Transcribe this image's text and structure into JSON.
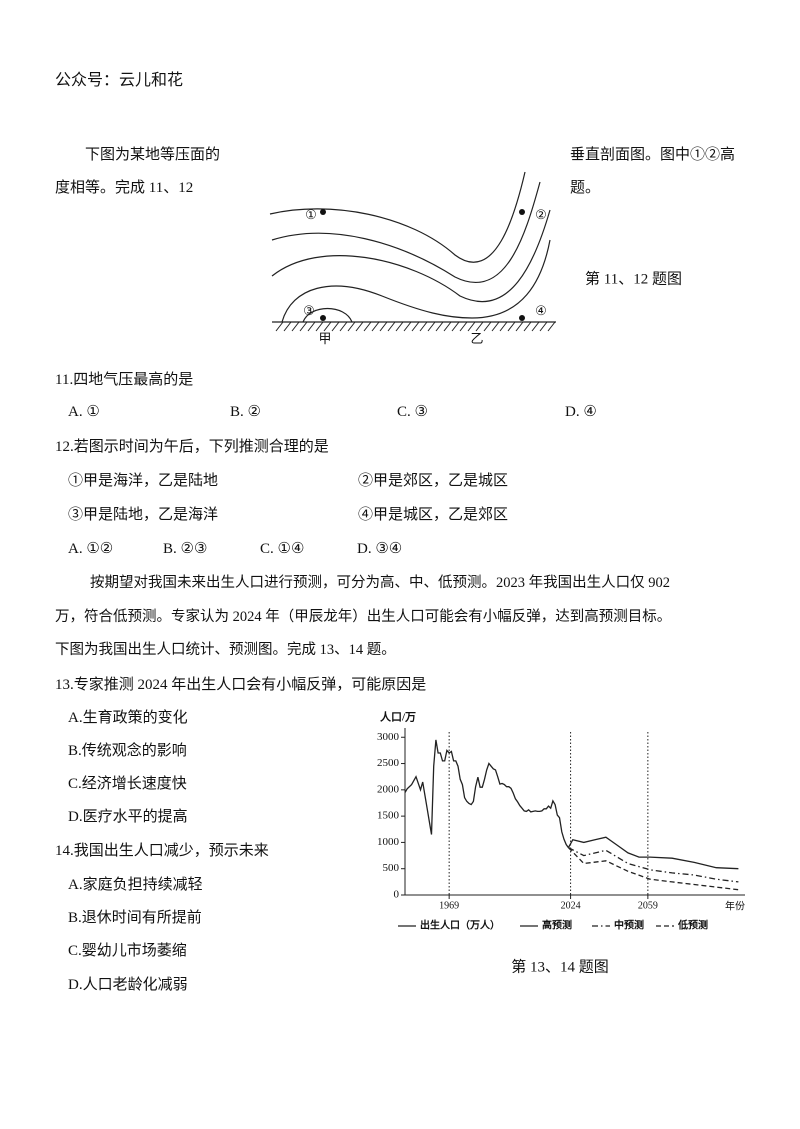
{
  "header": "公众号：云儿和花",
  "q11_12": {
    "intro": [
      "下图为某地等压面的",
      "垂直剖面图。图中①②高",
      "度相等。完成 11、12",
      "题。"
    ],
    "figure": {
      "points": [
        "①",
        "②",
        "③",
        "④"
      ],
      "places": [
        "甲",
        "乙"
      ],
      "caption": "第 11、12 题图"
    },
    "q11": {
      "stem": "11.四地气压最高的是",
      "options": [
        "A. ①",
        "B. ②",
        "C. ③",
        "D. ④"
      ]
    },
    "q12": {
      "stem": "12.若图示时间为午后，下列推测合理的是",
      "statements": [
        "①甲是海洋，乙是陆地",
        "②甲是郊区，乙是城区",
        "③甲是陆地，乙是海洋",
        "④甲是城区，乙是郊区"
      ],
      "options": [
        "A. ①②",
        "B. ②③",
        "C. ①④",
        "D. ③④"
      ]
    }
  },
  "q13_14": {
    "intro": [
      "按期望对我国未来出生人口进行预测，可分为高、中、低预测。2023 年我国出生人口仅 902",
      "万，符合低预测。专家认为 2024 年（甲辰龙年）出生人口可能会有小幅反弹，达到高预测目标。",
      "下图为我国出生人口统计、预测图。完成 13、14 题。"
    ],
    "q13": {
      "stem": "13.专家推测 2024 年出生人口会有小幅反弹，可能原因是",
      "options": [
        "A.生育政策的变化",
        "B.传统观念的影响",
        "C.经济增长速度快",
        "D.医疗水平的提高"
      ]
    },
    "q14": {
      "stem": "14.我国出生人口减少，预示未来",
      "options": [
        "A.家庭负担持续减轻",
        "B.退休时间有所提前",
        "C.婴幼儿市场萎缩",
        "D.人口老龄化减弱"
      ]
    },
    "caption": "第 13、14 题图"
  },
  "chart_data": {
    "type": "line",
    "ylabel": "人口/万",
    "xlabel": "年份",
    "xlim": [
      1949,
      2103
    ],
    "xticks": [
      1969,
      2024,
      2059
    ],
    "ylim": [
      0,
      3100
    ],
    "yticks": [
      0,
      500,
      1000,
      1500,
      2000,
      2500,
      3000
    ],
    "xgrid": "dotted",
    "series": [
      {
        "name": "出生人口（万人）",
        "color": "#222",
        "style": "solid",
        "x": [
          1949,
          1950,
          1952,
          1954,
          1956,
          1957,
          1958,
          1959,
          1960,
          1961,
          1962,
          1963,
          1964,
          1965,
          1966,
          1967,
          1968,
          1969,
          1970,
          1971,
          1972,
          1973,
          1974,
          1975,
          1976,
          1977,
          1978,
          1979,
          1980,
          1981,
          1982,
          1983,
          1984,
          1985,
          1986,
          1987,
          1988,
          1989,
          1990,
          1991,
          1992,
          1993,
          1994,
          1995,
          1996,
          1997,
          1998,
          1999,
          2000,
          2001,
          2002,
          2003,
          2004,
          2005,
          2006,
          2007,
          2008,
          2009,
          2010,
          2011,
          2012,
          2013,
          2014,
          2015,
          2016,
          2017,
          2018,
          2019,
          2020,
          2021,
          2022,
          2023
        ],
        "values": [
          1950,
          2020,
          2100,
          2250,
          2000,
          2150,
          1900,
          1650,
          1400,
          1150,
          2450,
          2950,
          2700,
          2700,
          2550,
          2550,
          2750,
          2700,
          2730,
          2550,
          2550,
          2450,
          2200,
          2100,
          1850,
          1780,
          1740,
          1720,
          1780,
          2060,
          2240,
          2050,
          2050,
          2200,
          2380,
          2500,
          2450,
          2400,
          2380,
          2250,
          2110,
          2120,
          2100,
          2060,
          2060,
          2030,
          1940,
          1830,
          1770,
          1700,
          1650,
          1600,
          1590,
          1620,
          1580,
          1590,
          1600,
          1590,
          1590,
          1600,
          1640,
          1640,
          1690,
          1650,
          1790,
          1720,
          1520,
          1470,
          1200,
          1060,
          960,
          902
        ]
      },
      {
        "name": "高预测",
        "color": "#222",
        "style": "solid",
        "x": [
          2023,
          2025,
          2030,
          2035,
          2040,
          2045,
          2050,
          2055,
          2060,
          2070,
          2080,
          2090,
          2100
        ],
        "values": [
          902,
          1050,
          1000,
          1050,
          1100,
          950,
          800,
          720,
          720,
          700,
          620,
          520,
          500
        ]
      },
      {
        "name": "中预测",
        "color": "#222",
        "style": "dashdot",
        "x": [
          2023,
          2030,
          2040,
          2050,
          2060,
          2070,
          2080,
          2090,
          2100
        ],
        "values": [
          902,
          750,
          850,
          600,
          480,
          420,
          380,
          300,
          250
        ]
      },
      {
        "name": "低预测",
        "color": "#222",
        "style": "dashed",
        "x": [
          2023,
          2030,
          2040,
          2050,
          2060,
          2070,
          2080,
          2090,
          2100
        ],
        "values": [
          902,
          600,
          650,
          450,
          300,
          250,
          200,
          150,
          100
        ]
      }
    ]
  }
}
